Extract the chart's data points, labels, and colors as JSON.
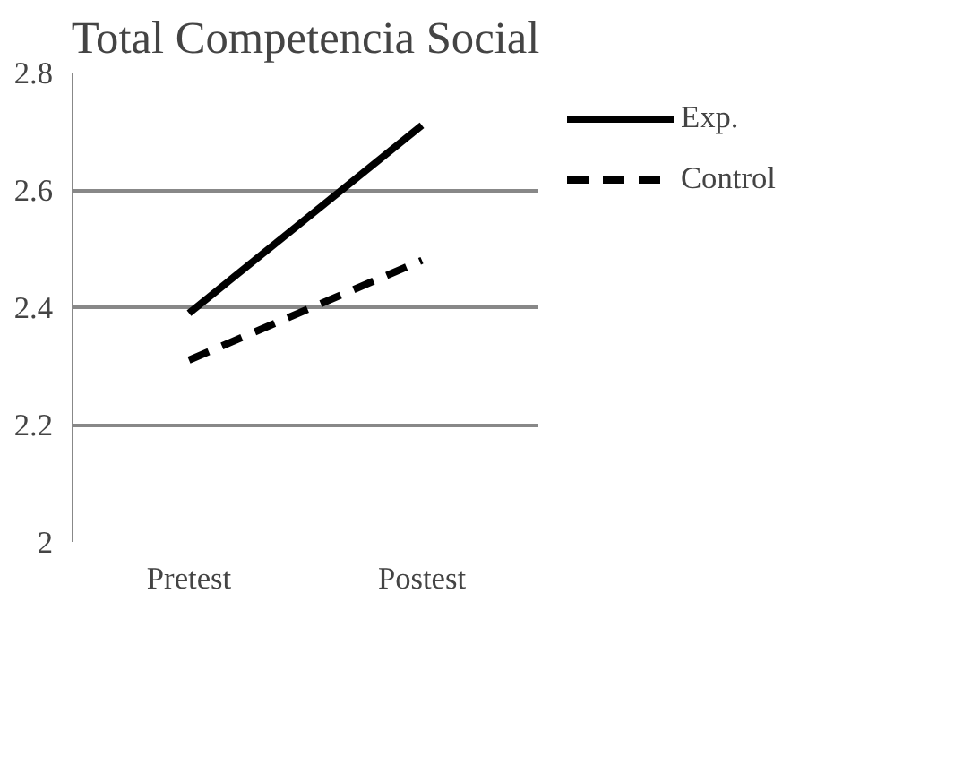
{
  "chart_data": {
    "type": "line",
    "title": "Total Competencia Social",
    "categories": [
      "Pretest",
      "Postest"
    ],
    "series": [
      {
        "name": "Exp.",
        "color": "#000000",
        "values": [
          2.39,
          2.71
        ],
        "line_style": "solid"
      },
      {
        "name": "Control",
        "color": "#000000",
        "values": [
          2.31,
          2.48
        ],
        "line_style": "dashed"
      }
    ],
    "ylim": [
      2,
      2.8
    ],
    "yticks": [
      2,
      2.2,
      2.4,
      2.6,
      2.8
    ],
    "grid": "y",
    "legend": "right",
    "marker": "none"
  }
}
